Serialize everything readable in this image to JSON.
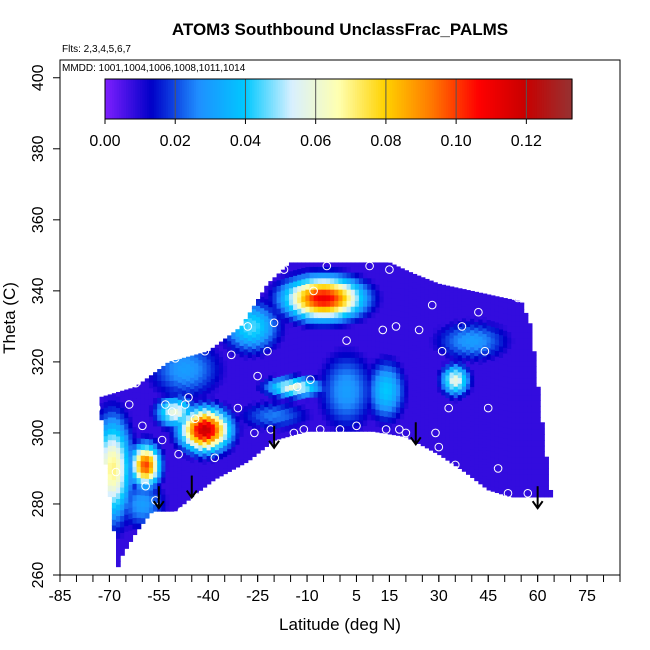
{
  "chart_data": {
    "type": "heatmap",
    "title": "ATOM3 Southbound UnclassFrac_PALMS",
    "subtitle_flights": "Flts: 2,3,4,5,6,7",
    "subtitle_mmdd": "MMDD: 1001,1004,1006,1008,1011,1014",
    "xlabel": "Latitude (deg N)",
    "ylabel": "Theta (C)",
    "xlim": [
      -85,
      85
    ],
    "ylim": [
      260,
      405
    ],
    "x_ticks": [
      -85,
      -70,
      -55,
      -40,
      -25,
      -10,
      5,
      15,
      30,
      45,
      60,
      75
    ],
    "x_tick_labels": [
      "-85",
      "-70",
      "-55",
      "-40",
      "-25",
      "-10",
      "5",
      "15",
      "30",
      "45",
      "60",
      "75"
    ],
    "y_ticks": [
      260,
      280,
      300,
      320,
      340,
      360,
      380,
      400
    ],
    "y_tick_labels": [
      "260",
      "280",
      "300",
      "320",
      "340",
      "360",
      "380",
      "400"
    ],
    "colorbar": {
      "range": [
        0,
        0.133
      ],
      "ticks": [
        0.0,
        0.02,
        0.04,
        0.06,
        0.08,
        0.1,
        0.12
      ],
      "tick_labels": [
        "0.00",
        "0.02",
        "0.04",
        "0.06",
        "0.08",
        "0.10",
        "0.12"
      ],
      "colors": [
        "#7f1fff",
        "#0000c8",
        "#1f8fff",
        "#00c8ff",
        "#d8f0ff",
        "#ffffb0",
        "#ffd200",
        "#ff7800",
        "#ff0000",
        "#c80000",
        "#963232"
      ]
    },
    "hotspots": [
      {
        "lat": -5,
        "theta": 338,
        "value": 0.11,
        "sx": 8,
        "sy": 4
      },
      {
        "lat": -41,
        "theta": 301,
        "value": 0.12,
        "sx": 5,
        "sy": 4
      },
      {
        "lat": -59,
        "theta": 291,
        "value": 0.1,
        "sx": 3,
        "sy": 4
      },
      {
        "lat": -69,
        "theta": 290,
        "value": 0.07,
        "sx": 4,
        "sy": 10
      },
      {
        "lat": -50,
        "theta": 306,
        "value": 0.06,
        "sx": 4,
        "sy": 3
      },
      {
        "lat": -14,
        "theta": 313,
        "value": 0.06,
        "sx": 6,
        "sy": 2
      },
      {
        "lat": 35,
        "theta": 315,
        "value": 0.06,
        "sx": 3,
        "sy": 3
      },
      {
        "lat": -27,
        "theta": 330,
        "value": 0.045,
        "sx": 6,
        "sy": 5
      },
      {
        "lat": -47,
        "theta": 318,
        "value": 0.03,
        "sx": 8,
        "sy": 6
      },
      {
        "lat": 2,
        "theta": 312,
        "value": 0.03,
        "sx": 6,
        "sy": 8
      },
      {
        "lat": 14,
        "theta": 312,
        "value": 0.04,
        "sx": 4,
        "sy": 6
      },
      {
        "lat": -60,
        "theta": 280,
        "value": 0.03,
        "sx": 5,
        "sy": 5
      },
      {
        "lat": 40,
        "theta": 326,
        "value": 0.03,
        "sx": 8,
        "sy": 4
      },
      {
        "lat": -20,
        "theta": 305,
        "value": 0.025,
        "sx": 8,
        "sy": 3
      }
    ],
    "domain_top": [
      [
        -73,
        310
      ],
      [
        -62,
        313
      ],
      [
        -52,
        320
      ],
      [
        -40,
        323
      ],
      [
        -30,
        330
      ],
      [
        -22,
        342
      ],
      [
        -15,
        348
      ],
      [
        0,
        348
      ],
      [
        15,
        348
      ],
      [
        22,
        345
      ],
      [
        30,
        342
      ],
      [
        40,
        340
      ],
      [
        55,
        337
      ],
      [
        58,
        330
      ],
      [
        62,
        298
      ],
      [
        64,
        283
      ]
    ],
    "domain_bottom": [
      [
        -73,
        310
      ],
      [
        -71,
        290
      ],
      [
        -69,
        276
      ],
      [
        -67.5,
        262
      ],
      [
        -66.5,
        265
      ],
      [
        -62,
        272
      ],
      [
        -57,
        278
      ],
      [
        -50,
        278
      ],
      [
        -45,
        282
      ],
      [
        -38,
        287
      ],
      [
        -28,
        292
      ],
      [
        -20,
        298
      ],
      [
        -10,
        300.5
      ],
      [
        10,
        300.5
      ],
      [
        20,
        299
      ],
      [
        30,
        294
      ],
      [
        38,
        289
      ],
      [
        45,
        284
      ],
      [
        52,
        282
      ],
      [
        64,
        282
      ]
    ],
    "observations": [
      [
        -80,
        310
      ],
      [
        -74,
        307
      ],
      [
        -68,
        289
      ],
      [
        -66,
        315
      ],
      [
        -64,
        308
      ],
      [
        -62,
        314
      ],
      [
        -60,
        302
      ],
      [
        -59,
        285
      ],
      [
        -57,
        275
      ],
      [
        -56,
        281
      ],
      [
        -54,
        298
      ],
      [
        -53,
        308
      ],
      [
        -51,
        306
      ],
      [
        -50,
        321
      ],
      [
        -49,
        294
      ],
      [
        -48,
        278
      ],
      [
        -47,
        308
      ],
      [
        -46,
        310
      ],
      [
        -44,
        304
      ],
      [
        -43,
        282
      ],
      [
        -41,
        323
      ],
      [
        -38,
        293
      ],
      [
        -33,
        322
      ],
      [
        -31,
        307
      ],
      [
        -28,
        330
      ],
      [
        -26,
        300
      ],
      [
        -25,
        316
      ],
      [
        -22,
        323
      ],
      [
        -21,
        301
      ],
      [
        -20,
        331
      ],
      [
        -17,
        346
      ],
      [
        -14,
        300
      ],
      [
        -13,
        313
      ],
      [
        -11,
        301
      ],
      [
        -9,
        315
      ],
      [
        -8,
        340
      ],
      [
        -6,
        301
      ],
      [
        -4,
        347
      ],
      [
        0,
        301
      ],
      [
        2,
        326
      ],
      [
        5,
        302
      ],
      [
        9,
        347
      ],
      [
        13,
        329
      ],
      [
        14,
        301
      ],
      [
        15,
        346
      ],
      [
        17,
        330
      ],
      [
        18,
        301
      ],
      [
        20,
        300
      ],
      [
        24,
        329
      ],
      [
        28,
        336
      ],
      [
        29,
        300
      ],
      [
        30,
        296
      ],
      [
        31,
        323
      ],
      [
        33,
        307
      ],
      [
        35,
        291
      ],
      [
        37,
        330
      ],
      [
        38,
        286
      ],
      [
        42,
        334
      ],
      [
        44,
        323
      ],
      [
        45,
        307
      ],
      [
        48,
        290
      ],
      [
        51,
        283
      ],
      [
        54,
        338
      ],
      [
        57,
        283
      ]
    ],
    "arrows": [
      [
        -55,
        285
      ],
      [
        -45,
        288
      ],
      [
        -20,
        302
      ],
      [
        23,
        303
      ],
      [
        60,
        285
      ]
    ]
  }
}
